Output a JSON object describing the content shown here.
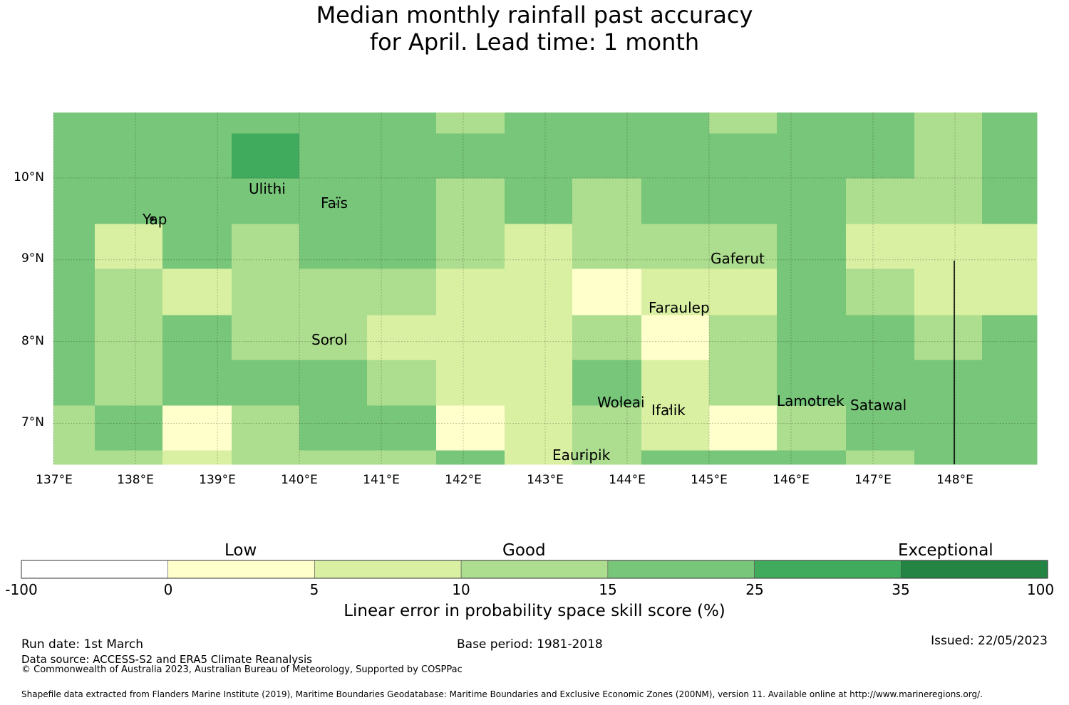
{
  "title": {
    "line1": "Median monthly rainfall past accuracy",
    "line2": "for April. Lead time: 1 month"
  },
  "map": {
    "lon_range": [
      137.0,
      149.0
    ],
    "lat_range": [
      6.5,
      10.8
    ],
    "lat_ticks": [
      {
        "value": 10,
        "label": "10°N"
      },
      {
        "value": 9,
        "label": "9°N"
      },
      {
        "value": 8,
        "label": "8°N"
      },
      {
        "value": 7,
        "label": "7°N"
      }
    ],
    "lon_ticks": [
      {
        "value": 137,
        "label": "137°E"
      },
      {
        "value": 138,
        "label": "138°E"
      },
      {
        "value": 139,
        "label": "139°E"
      },
      {
        "value": 140,
        "label": "140°E"
      },
      {
        "value": 141,
        "label": "141°E"
      },
      {
        "value": 142,
        "label": "142°E"
      },
      {
        "value": 143,
        "label": "143°E"
      },
      {
        "value": 144,
        "label": "144°E"
      },
      {
        "value": 145,
        "label": "145°E"
      },
      {
        "value": 146,
        "label": "146°E"
      },
      {
        "value": 147,
        "label": "147°E"
      },
      {
        "value": 148,
        "label": "148°E"
      }
    ],
    "places": [
      {
        "name": "Ulithi",
        "lon": 139.75,
        "lat": 9.85
      },
      {
        "name": "Faïs",
        "lon": 140.45,
        "lat": 9.68
      },
      {
        "name": "Yap",
        "lon": 138.2,
        "lat": 9.5
      },
      {
        "name": "Gaferut",
        "lon": 145.35,
        "lat": 9.0
      },
      {
        "name": "Faraulep",
        "lon": 144.65,
        "lat": 8.4
      },
      {
        "name": "Sorol",
        "lon": 140.38,
        "lat": 8.03
      },
      {
        "name": "Woleai",
        "lon": 143.92,
        "lat": 7.27
      },
      {
        "name": "Ifalik",
        "lon": 144.52,
        "lat": 7.18
      },
      {
        "name": "Lamotrek",
        "lon": 146.26,
        "lat": 7.29
      },
      {
        "name": "Satawal",
        "lon": 147.08,
        "lat": 7.23
      },
      {
        "name": "Eauripik",
        "lon": 143.45,
        "lat": 6.6
      }
    ]
  },
  "chart_data": {
    "type": "heatmap",
    "title": "Median monthly rainfall past accuracy for April. Lead time: 1 month",
    "x_unit": "longitude °E",
    "y_unit": "latitude °N",
    "xlim": [
      137.0,
      149.0
    ],
    "ylim": [
      6.5,
      10.8
    ],
    "lon_edges": [
      137.0,
      137.5,
      138.33,
      139.17,
      140.0,
      140.83,
      141.67,
      142.5,
      143.33,
      144.17,
      145.0,
      145.83,
      146.67,
      147.5,
      148.33,
      149.0
    ],
    "lat_edges": [
      6.5,
      6.67,
      7.22,
      7.78,
      8.33,
      8.89,
      9.44,
      10.0,
      10.55,
      10.8
    ],
    "skill_category_rows_south_to_north": [
      [
        2,
        2,
        1,
        2,
        2,
        2,
        3,
        1,
        2,
        3,
        3,
        3,
        2,
        3,
        3
      ],
      [
        2,
        3,
        0,
        2,
        3,
        3,
        0,
        1,
        2,
        1,
        0,
        2,
        3,
        3,
        3
      ],
      [
        3,
        2,
        3,
        3,
        3,
        2,
        1,
        1,
        3,
        1,
        2,
        3,
        3,
        3,
        3
      ],
      [
        3,
        2,
        3,
        2,
        2,
        1,
        1,
        1,
        2,
        0,
        2,
        3,
        3,
        2,
        3
      ],
      [
        3,
        2,
        1,
        2,
        2,
        2,
        1,
        1,
        0,
        1,
        1,
        3,
        2,
        1,
        1
      ],
      [
        3,
        1,
        3,
        2,
        3,
        3,
        2,
        1,
        2,
        2,
        2,
        3,
        1,
        1,
        1
      ],
      [
        3,
        3,
        3,
        3,
        3,
        3,
        2,
        3,
        2,
        3,
        3,
        3,
        2,
        2,
        3
      ],
      [
        3,
        3,
        3,
        4,
        3,
        3,
        3,
        3,
        3,
        3,
        3,
        3,
        3,
        2,
        3
      ],
      [
        3,
        3,
        3,
        3,
        3,
        3,
        2,
        3,
        3,
        3,
        2,
        3,
        3,
        2,
        3
      ]
    ],
    "category_ranges": [
      "0 to 5",
      "5 to 10",
      "10 to 15",
      "15 to 25",
      "25 to 35"
    ],
    "colorbar": {
      "boundaries": [
        -100,
        0,
        5,
        10,
        15,
        25,
        35,
        100
      ],
      "tick_labels": [
        "-100",
        "0",
        "5",
        "10",
        "15",
        "25",
        "35",
        "100"
      ],
      "colors": [
        "#ffffff",
        "#ffffcc",
        "#d9f0a3",
        "#addd8e",
        "#78c679",
        "#41ab5d",
        "#238443"
      ],
      "zone_labels": [
        "Low",
        "Good",
        "Exceptional"
      ],
      "label": "Linear error in probability space skill score (%)"
    }
  },
  "footer": {
    "run_date": "Run date: 1st March",
    "base_period": "Base period: 1981-2018",
    "issued": "Issued: 22/05/2023",
    "data_source": "Data source: ACCESS-S2 and ERA5 Climate Reanalysis",
    "copyright": "© Commonwealth of Australia 2023, Australian Bureau of Meteorology, Supported by COSPPac",
    "shapefile": "Shapefile data extracted from Flanders Marine Institute (2019), Maritime Boundaries Geodatabase: Maritime Boundaries and Exclusive Economic Zones (200NM), version 11. Available online at http://www.marineregions.org/."
  }
}
